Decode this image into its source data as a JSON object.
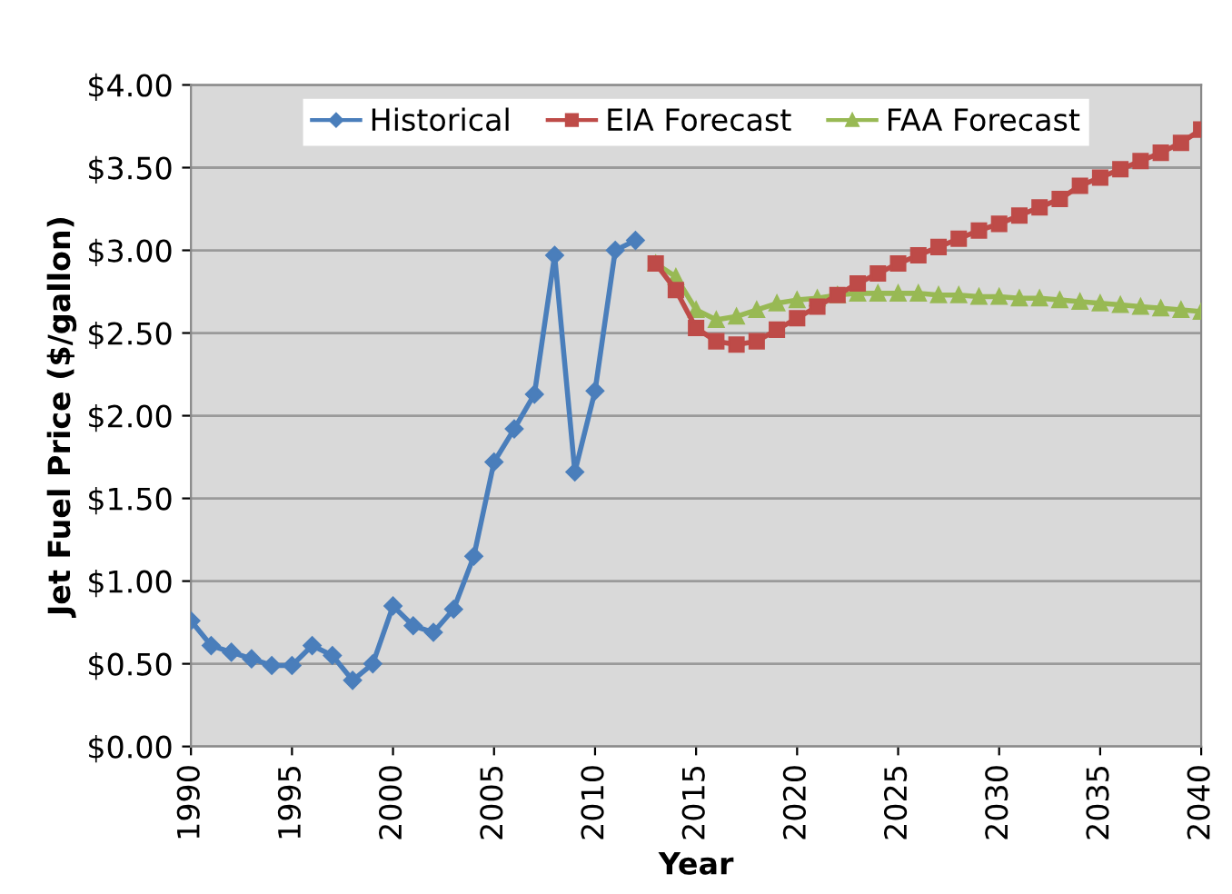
{
  "chart_data": {
    "type": "line",
    "xlabel": "Year",
    "ylabel": "Jet Fuel Price ($/gallon)",
    "xlim": [
      1990,
      2040
    ],
    "xticks": [
      1990,
      1995,
      2000,
      2005,
      2010,
      2015,
      2020,
      2025,
      2030,
      2035,
      2040
    ],
    "ylim": [
      0,
      4
    ],
    "yticks": [
      {
        "value": 0,
        "label": "$0.00"
      },
      {
        "value": 0.5,
        "label": "$0.50"
      },
      {
        "value": 1,
        "label": "$1.00"
      },
      {
        "value": 1.5,
        "label": "$1.50"
      },
      {
        "value": 2,
        "label": "$2.00"
      },
      {
        "value": 2.5,
        "label": "$2.50"
      },
      {
        "value": 3,
        "label": "$3.00"
      },
      {
        "value": 3.5,
        "label": "$3.50"
      },
      {
        "value": 4,
        "label": "$4.00"
      }
    ],
    "grid": "y",
    "legend": "top",
    "line_style": "solid",
    "series": [
      {
        "name": "Historical",
        "color": "#4a7ebb",
        "marker": "diamond",
        "x": [
          1990,
          1991,
          1992,
          1993,
          1994,
          1995,
          1996,
          1997,
          1998,
          1999,
          2000,
          2001,
          2002,
          2003,
          2004,
          2005,
          2006,
          2007,
          2008,
          2009,
          2010,
          2011,
          2012
        ],
        "values": [
          0.76,
          0.61,
          0.57,
          0.53,
          0.49,
          0.49,
          0.61,
          0.55,
          0.4,
          0.5,
          0.85,
          0.73,
          0.69,
          0.83,
          1.15,
          1.72,
          1.92,
          2.13,
          2.97,
          1.66,
          2.15,
          3.0,
          3.06
        ]
      },
      {
        "name": "EIA Forecast",
        "color": "#be4b48",
        "marker": "square",
        "x": [
          2013,
          2014,
          2015,
          2016,
          2017,
          2018,
          2019,
          2020,
          2021,
          2022,
          2023,
          2024,
          2025,
          2026,
          2027,
          2028,
          2029,
          2030,
          2031,
          2032,
          2033,
          2034,
          2035,
          2036,
          2037,
          2038,
          2039,
          2040
        ],
        "values": [
          2.92,
          2.76,
          2.53,
          2.45,
          2.43,
          2.45,
          2.52,
          2.59,
          2.66,
          2.73,
          2.8,
          2.86,
          2.92,
          2.97,
          3.02,
          3.07,
          3.12,
          3.16,
          3.21,
          3.26,
          3.31,
          3.39,
          3.44,
          3.49,
          3.54,
          3.59,
          3.65,
          3.73
        ]
      },
      {
        "name": "FAA Forecast",
        "color": "#98b954",
        "marker": "triangle",
        "x": [
          2013,
          2014,
          2015,
          2016,
          2017,
          2018,
          2019,
          2020,
          2021,
          2022,
          2023,
          2024,
          2025,
          2026,
          2027,
          2028,
          2029,
          2030,
          2031,
          2032,
          2033,
          2034,
          2035,
          2036,
          2037,
          2038,
          2039,
          2040
        ],
        "values": [
          2.92,
          2.84,
          2.64,
          2.58,
          2.6,
          2.64,
          2.68,
          2.7,
          2.71,
          2.73,
          2.74,
          2.74,
          2.74,
          2.74,
          2.73,
          2.73,
          2.72,
          2.72,
          2.71,
          2.71,
          2.7,
          2.69,
          2.68,
          2.67,
          2.66,
          2.65,
          2.64,
          2.63
        ]
      }
    ]
  }
}
